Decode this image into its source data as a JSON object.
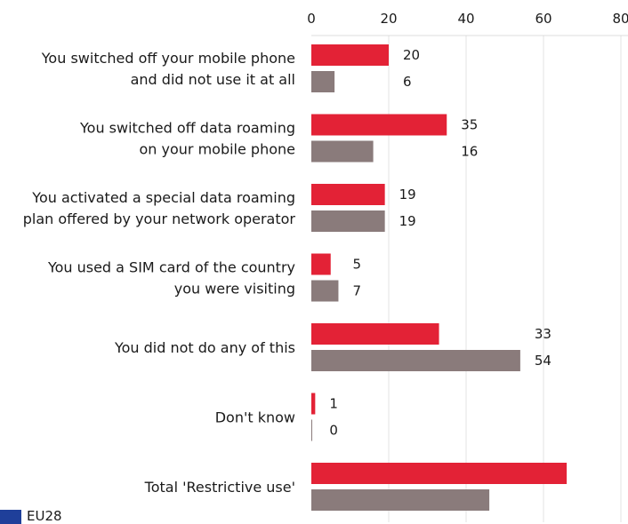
{
  "chart_data": {
    "type": "bar",
    "orientation": "horizontal",
    "categories": [
      [
        "You switched off your mobile phone",
        "and did not use it at all"
      ],
      [
        "You switched off data roaming",
        "on your mobile phone"
      ],
      [
        "You activated a special data roaming",
        "plan offered by your network operator"
      ],
      [
        "You used a SIM card of the country",
        "you were visiting"
      ],
      [
        "You did not do any of this"
      ],
      [
        "Don't know"
      ],
      [
        "Total 'Restrictive use'"
      ]
    ],
    "series": [
      {
        "values": [
          20,
          35,
          19,
          5,
          33,
          1,
          66
        ],
        "labels": [
          "20",
          "35",
          "19",
          "5",
          "33",
          "1",
          ""
        ],
        "color": "#e32236"
      },
      {
        "name": "EU28",
        "values": [
          6,
          16,
          19,
          7,
          54,
          0,
          46
        ],
        "labels": [
          "6",
          "16",
          "19",
          "7",
          "54",
          "0",
          ""
        ],
        "color": "#8a7b7b"
      }
    ],
    "xlim": [
      0,
      80
    ],
    "xticks": [
      0,
      20,
      40,
      60,
      80
    ],
    "grid": true,
    "legend": {
      "position": "bottom-left",
      "label": "EU28"
    }
  }
}
